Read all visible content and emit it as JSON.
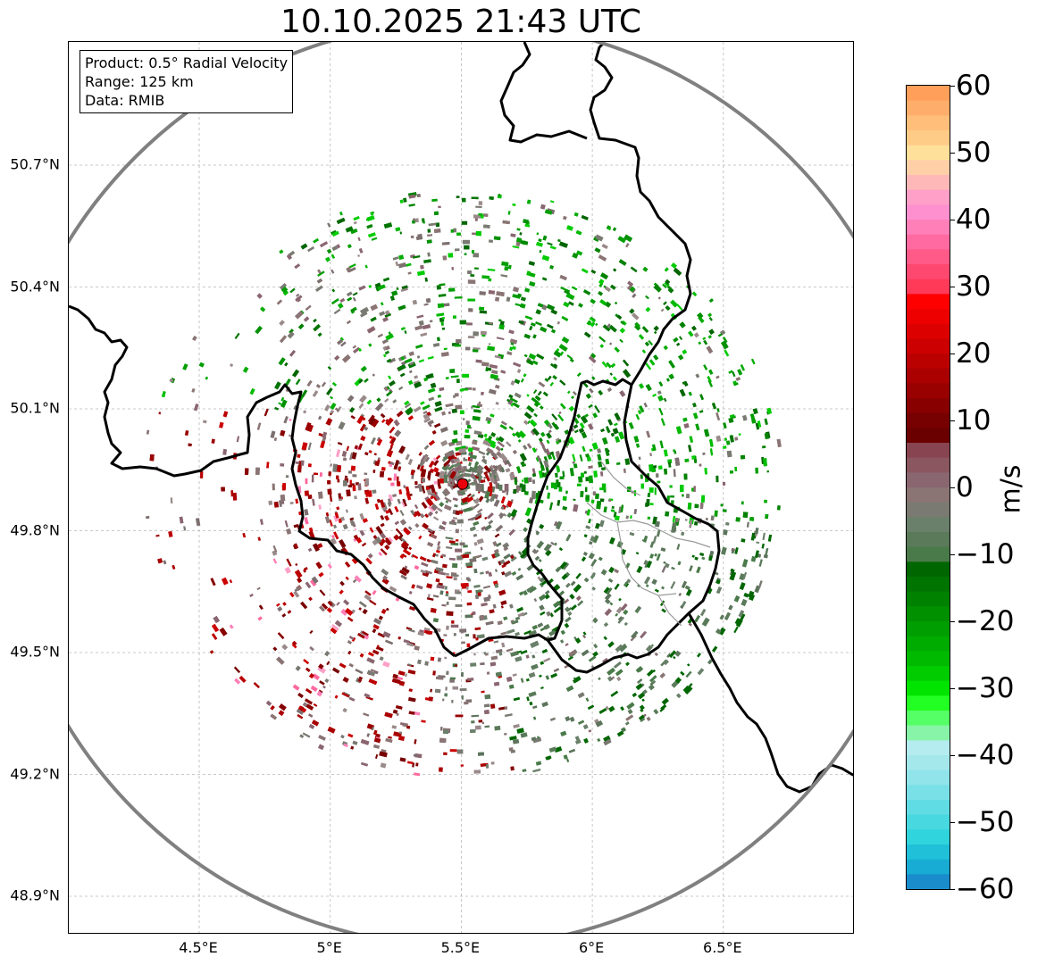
{
  "title": "10.10.2025 21:43 UTC",
  "info": {
    "product": "Product: 0.5° Radial Velocity",
    "range": "Range: 125 km",
    "source": "Data: RMIB"
  },
  "axes": {
    "lat_labels": [
      "50.7°N",
      "50.4°N",
      "50.1°N",
      "49.8°N",
      "49.5°N",
      "49.2°N",
      "48.9°N"
    ],
    "lon_labels": [
      "4.5°E",
      "5°E",
      "5.5°E",
      "6°E",
      "6.5°E"
    ],
    "lat_values": [
      50.7,
      50.4,
      50.1,
      49.8,
      49.5,
      49.2,
      48.9
    ],
    "lon_values": [
      4.5,
      5.0,
      5.5,
      6.0,
      6.5
    ],
    "lon_range": [
      4.0,
      7.0
    ],
    "lat_range": [
      48.8,
      51.0
    ],
    "grid": true
  },
  "radar": {
    "site_lon": 5.505,
    "site_lat": 49.915,
    "range_km": 125,
    "marker_color": "#e8000b",
    "ring_color": "#808080"
  },
  "colorbar": {
    "unit": "m/s",
    "vmin": -60,
    "vmax": 60,
    "tick_labels": [
      "60",
      "50",
      "40",
      "30",
      "20",
      "10",
      "0",
      "−10",
      "−20",
      "−30",
      "−40",
      "−50",
      "−60"
    ],
    "tick_values": [
      60,
      50,
      40,
      30,
      20,
      10,
      0,
      -10,
      -20,
      -30,
      -40,
      -50,
      -60
    ],
    "colors_top_to_bottom": [
      "#ff9f5a",
      "#ffad6a",
      "#ffbe7a",
      "#ffcc88",
      "#ffe09a",
      "#ffd0a8",
      "#ffb8b8",
      "#ffa0c8",
      "#ff90d0",
      "#ff80b8",
      "#ff6aa0",
      "#ff5a88",
      "#ff4870",
      "#ff3a58",
      "#ff0000",
      "#ee0000",
      "#dd0000",
      "#cc0000",
      "#bb0000",
      "#aa0000",
      "#990000",
      "#880000",
      "#770000",
      "#6a0000",
      "#884450",
      "#8a5660",
      "#8a6670",
      "#8a7474",
      "#7a7a72",
      "#6a806a",
      "#5a7a5a",
      "#4a7a4a",
      "#006600",
      "#007400",
      "#008200",
      "#009000",
      "#009e00",
      "#00ac00",
      "#00ba00",
      "#00cc00",
      "#00e400",
      "#22ff22",
      "#55ff66",
      "#88f4a8",
      "#b4ecf0",
      "#a4e8ec",
      "#90e4ea",
      "#7ae0e8",
      "#60dce4",
      "#48d8e0",
      "#30d4dc",
      "#20c0d8",
      "#18acd4",
      "#1a8ccc"
    ]
  }
}
